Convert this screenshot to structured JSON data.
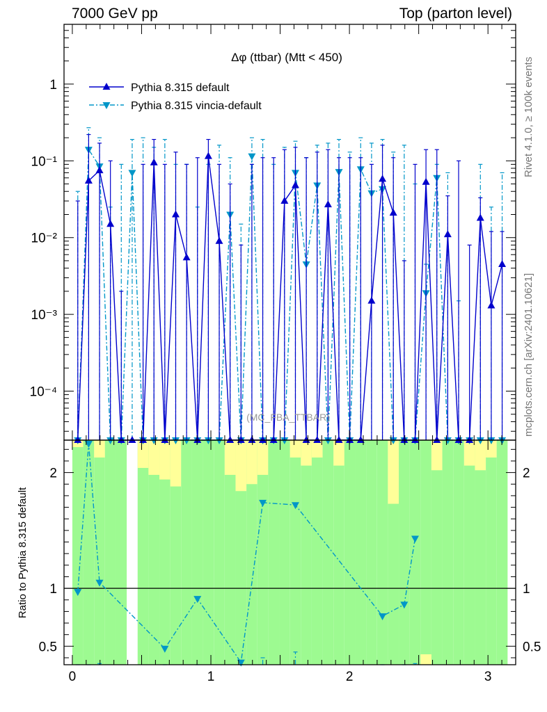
{
  "header": {
    "left": "7000 GeV pp",
    "right": "Top (parton level)"
  },
  "side": {
    "rivet": "Rivet 4.1.0, ≥ 100k events",
    "mcplots": "mcplots.cern.ch [arXiv:2401.10621]"
  },
  "colors": {
    "pythia_default": "#0000cc",
    "vincia": "#0096c8",
    "band_green": "#9dfa91",
    "band_yellow": "#ffff99"
  },
  "chart_data": [
    {
      "type": "line",
      "title": "Δφ (ttbar) (Mtt < 450)",
      "watermark": "(MC_FBA_TTBAR)",
      "yscale": "log",
      "xlim": [
        -0.06,
        3.2
      ],
      "ylim": [
        2.3e-05,
        6
      ],
      "yticks": [
        {
          "value": 1,
          "label": "1"
        },
        {
          "value": 0.1,
          "label": "10⁻¹"
        },
        {
          "value": 0.01,
          "label": "10⁻²"
        },
        {
          "value": 0.001,
          "label": "10⁻³"
        },
        {
          "value": 0.0001,
          "label": "10⁻⁴"
        }
      ],
      "x": [
        0.0393,
        0.1178,
        0.1963,
        0.2749,
        0.3534,
        0.432,
        0.5105,
        0.589,
        0.6676,
        0.7461,
        0.8247,
        0.9032,
        0.9817,
        1.0603,
        1.1388,
        1.2174,
        1.2959,
        1.3744,
        1.453,
        1.5315,
        1.6101,
        1.6886,
        1.7671,
        1.8457,
        1.9242,
        2.0028,
        2.0813,
        2.1598,
        2.2384,
        2.3169,
        2.3955,
        2.474,
        2.5525,
        2.6311,
        2.7096,
        2.7882,
        2.8667,
        2.9452,
        3.0238,
        3.1023
      ],
      "series": [
        {
          "name": "Pythia 8.315 default",
          "marker": "triangle-up",
          "style": "solid",
          "values": [
            0,
            0.055,
            0.075,
            0.015,
            0,
            0,
            0,
            0.095,
            0,
            0.02,
            0.0055,
            0,
            0.115,
            0.009,
            0,
            0,
            0,
            0,
            0,
            0.03,
            0.048,
            0,
            0,
            0.027,
            0,
            0,
            0,
            0.0015,
            0.058,
            0.021,
            0,
            0,
            0.053,
            0,
            0.011,
            0,
            0,
            0.018,
            0.0013,
            0.0045
          ],
          "yerr_up": [
            0.03,
            0.22,
            0.17,
            0.1,
            0.002,
            0,
            0.09,
            0.19,
            0.09,
            0.13,
            0.09,
            0.11,
            0.19,
            0.09,
            0.05,
            0.008,
            0.09,
            0.11,
            0.11,
            0.14,
            0.15,
            0.11,
            0.13,
            0.14,
            0.11,
            0.11,
            0.11,
            0.09,
            0.16,
            0.11,
            0.005,
            0.09,
            0.14,
            0.14,
            0.035,
            0.1,
            0.008,
            0.033,
            0.012,
            0.012
          ]
        },
        {
          "name": "Pythia 8.315 vincia-default",
          "marker": "triangle-down",
          "style": "dashdot",
          "values": [
            0,
            0.14,
            0.085,
            0,
            0,
            0.07,
            0,
            0,
            0,
            0,
            0,
            0,
            0,
            0,
            0.02,
            0,
            0.115,
            0,
            0,
            0,
            0.07,
            0.0045,
            0.048,
            0,
            0.072,
            0,
            0.078,
            0.038,
            0.043,
            0,
            0,
            0,
            0.0019,
            0.06,
            0,
            0,
            0,
            0,
            0,
            0
          ],
          "yerr_up": [
            0.04,
            0.27,
            0.2,
            0.025,
            0.09,
            0.19,
            0.2,
            0.15,
            0.19,
            0.09,
            0.09,
            0.025,
            0.09,
            0.16,
            0.11,
            0.015,
            0.2,
            0.19,
            0.09,
            0.15,
            0.18,
            0.11,
            0.16,
            0.17,
            0.19,
            0.13,
            0.2,
            0.17,
            0.19,
            0.13,
            0.16,
            0.05,
            0.0045,
            0.09,
            0.07,
            0.0015,
            0,
            0.09,
            0.025,
            0.07
          ]
        }
      ]
    },
    {
      "type": "line",
      "ylabel": "Ratio to Pythia 8.315 default",
      "xlim": [
        -0.06,
        3.2
      ],
      "ylim": [
        0.34,
        2.28
      ],
      "yticks": [
        {
          "value": 0.5,
          "label": "0.5"
        },
        {
          "value": 1,
          "label": "1"
        },
        {
          "value": 2,
          "label": "2"
        }
      ],
      "xticks": [
        {
          "value": 0,
          "label": "0"
        },
        {
          "value": 1,
          "label": "1"
        },
        {
          "value": 2,
          "label": "2"
        },
        {
          "value": 3,
          "label": "3"
        }
      ],
      "band_green_top": [
        2.28,
        2.28,
        2.28,
        2.28,
        2.28,
        0,
        2.28,
        2.28,
        2.28,
        2.28,
        2.28,
        2.28,
        2.28,
        2.28,
        2.28,
        2.28,
        2.28,
        2.28,
        2.28,
        2.28,
        2.28,
        2.28,
        2.28,
        2.28,
        2.28,
        2.28,
        2.28,
        2.28,
        2.28,
        2.28,
        2.28,
        2.28,
        2.28,
        2.28,
        2.28,
        2.28,
        2.28,
        2.28,
        2.28,
        2.28
      ],
      "band_yellow_lo": [
        2.22,
        2.28,
        2.13,
        2.28,
        2.28,
        0,
        2.04,
        1.98,
        1.94,
        1.88,
        2.28,
        2.28,
        2.28,
        2.28,
        1.98,
        1.84,
        1.9,
        1.98,
        2.28,
        2.28,
        2.13,
        2.06,
        2.13,
        2.28,
        2.06,
        2.28,
        2.28,
        2.28,
        2.28,
        1.73,
        2.28,
        2.28,
        2.28,
        2.02,
        2.28,
        2.28,
        2.06,
        2.02,
        2.13,
        2.28
      ],
      "band_yellow_hi": [
        2.28,
        2.28,
        2.28,
        2.28,
        2.28,
        0,
        2.28,
        2.28,
        2.28,
        2.28,
        2.28,
        2.28,
        2.28,
        2.28,
        2.28,
        2.28,
        2.28,
        2.28,
        2.28,
        2.28,
        2.28,
        2.28,
        2.28,
        2.28,
        2.28,
        2.28,
        2.28,
        2.28,
        2.13,
        2.28,
        2.28,
        2.28,
        2.22,
        2.28,
        2.28,
        2.28,
        2.28,
        2.28,
        2.28,
        2.28
      ],
      "series": [
        {
          "name": "Pythia 8.315 vincia-default",
          "marker": "triangle-down",
          "style": "dashdot",
          "x": [
            0.0393,
            0.1178,
            0.1963,
            0.6676,
            0.9032,
            1.2174,
            1.3744,
            1.6101,
            2.2384,
            2.3955,
            2.474
          ],
          "values": [
            0.97,
            2.25,
            1.05,
            0.48,
            0.91,
            0.36,
            1.74,
            1.72,
            0.76,
            0.86,
            1.43
          ],
          "yerr_up": [
            0.18,
            0.05,
            0.35,
            0.12,
            0.3,
            0.1,
            0.4,
            0.45,
            0.2,
            0.25,
            0.35
          ]
        }
      ]
    }
  ]
}
